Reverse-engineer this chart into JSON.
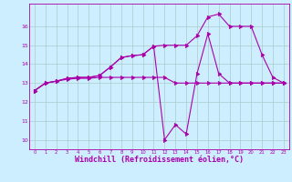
{
  "bg_color": "#cceeff",
  "line_color": "#aa00aa",
  "grid_color": "#aacccc",
  "xlabel": "Windchill (Refroidissement éolien,°C)",
  "xlabel_fontsize": 6.0,
  "ylabel_ticks": [
    10,
    11,
    12,
    13,
    14,
    15,
    16
  ],
  "xticks": [
    0,
    1,
    2,
    3,
    4,
    5,
    6,
    7,
    8,
    9,
    10,
    11,
    12,
    13,
    14,
    15,
    16,
    17,
    18,
    19,
    20,
    21,
    22,
    23
  ],
  "xlim": [
    -0.5,
    23.5
  ],
  "ylim": [
    9.5,
    17.2
  ],
  "series1_x": [
    0,
    1,
    2,
    3,
    4,
    5,
    6,
    7,
    8,
    9,
    10,
    11,
    12,
    13,
    14,
    15,
    16,
    17,
    18,
    19,
    20,
    21,
    22,
    23
  ],
  "series1_y": [
    12.6,
    13.0,
    13.1,
    13.2,
    13.25,
    13.25,
    13.3,
    13.3,
    13.3,
    13.3,
    13.3,
    13.3,
    13.3,
    13.0,
    13.0,
    13.0,
    13.0,
    13.0,
    13.0,
    13.0,
    13.0,
    13.0,
    13.0,
    13.0
  ],
  "series2_x": [
    0,
    1,
    2,
    3,
    4,
    5,
    6,
    7,
    8,
    9,
    10,
    11,
    12,
    13,
    14,
    15,
    16,
    17,
    18,
    19,
    20,
    21,
    22,
    23
  ],
  "series2_y": [
    12.6,
    13.0,
    13.1,
    13.25,
    13.3,
    13.3,
    13.4,
    13.85,
    14.35,
    14.45,
    14.5,
    14.95,
    15.0,
    15.0,
    15.0,
    15.5,
    16.5,
    16.65,
    16.0,
    16.0,
    16.0,
    14.5,
    13.3,
    13.0
  ],
  "series3_x": [
    0,
    1,
    2,
    3,
    4,
    5,
    6,
    7,
    8,
    9,
    10,
    11,
    12,
    13,
    14,
    15,
    16,
    17,
    18,
    19,
    20,
    21,
    22,
    23
  ],
  "series3_y": [
    12.6,
    13.0,
    13.1,
    13.25,
    13.3,
    13.3,
    13.4,
    13.85,
    14.35,
    14.45,
    14.5,
    14.95,
    10.0,
    10.8,
    10.3,
    13.5,
    15.6,
    13.5,
    13.0,
    13.0,
    13.0,
    13.0,
    13.0,
    13.0
  ]
}
